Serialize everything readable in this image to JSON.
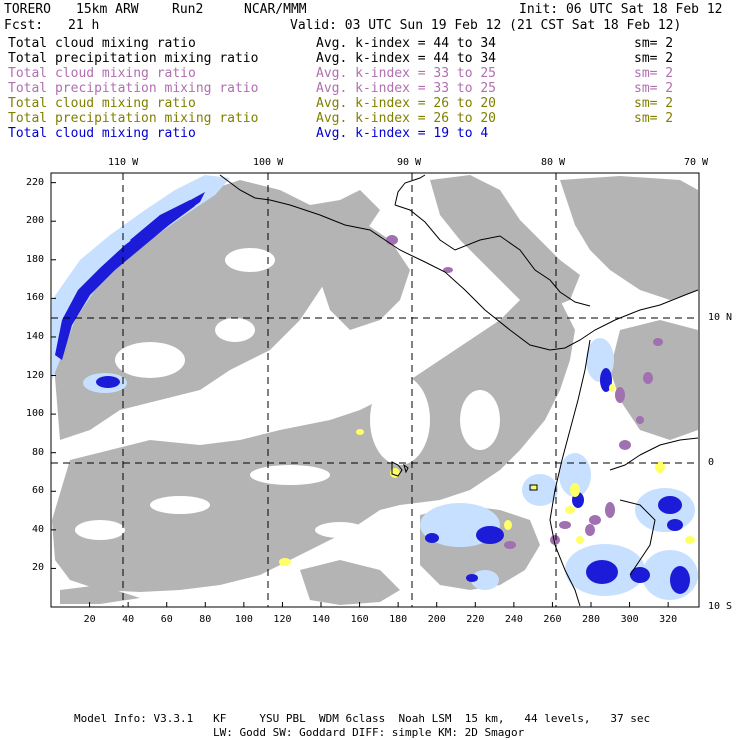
{
  "header": {
    "model": "TORERO",
    "resolution": "15km ARW",
    "run": "Run2",
    "org": "NCAR/MMM",
    "init": "Init: 06 UTC Sat 18 Feb 12",
    "fcst_label": "Fcst:",
    "fcst_value": "21 h",
    "valid": "Valid: 03 UTC Sun 19 Feb 12 (21 CST Sat 18 Feb 12)"
  },
  "legend": [
    {
      "field": "Total cloud mixing ratio",
      "index": "Avg. k-index = 44 to 34",
      "sm": "sm= 2",
      "color": "#000000"
    },
    {
      "field": "Total precipitation mixing ratio",
      "index": "Avg. k-index = 44 to 34",
      "sm": "sm= 2",
      "color": "#000000"
    },
    {
      "field": "Total cloud mixing ratio",
      "index": "Avg. k-index = 33 to 25",
      "sm": "sm= 2",
      "color": "#b070b0"
    },
    {
      "field": "Total precipitation mixing ratio",
      "index": "Avg. k-index = 33 to 25",
      "sm": "sm= 2",
      "color": "#b070b0"
    },
    {
      "field": "Total cloud mixing ratio",
      "index": "Avg. k-index = 26 to 20",
      "sm": "sm= 2",
      "color": "#808000"
    },
    {
      "field": "Total precipitation mixing ratio",
      "index": "Avg. k-index = 26 to 20",
      "sm": "sm= 2",
      "color": "#808000"
    },
    {
      "field": "Total cloud mixing ratio",
      "index": "Avg. k-index = 19 to 4",
      "sm": "",
      "color": "#0000d0"
    }
  ],
  "map": {
    "x_ticks": [
      "20",
      "40",
      "60",
      "80",
      "100",
      "120",
      "140",
      "160",
      "180",
      "200",
      "220",
      "240",
      "260",
      "280",
      "300",
      "320"
    ],
    "y_ticks": [
      "20",
      "40",
      "60",
      "80",
      "100",
      "120",
      "140",
      "160",
      "180",
      "200",
      "220"
    ],
    "lon_labels": [
      "110 W",
      "100 W",
      "90 W",
      "80 W",
      "70 W"
    ],
    "lat_labels": [
      "10 N",
      "0",
      "10 S"
    ],
    "colors": {
      "gray": "#b4b4b4",
      "purple": "#a070b0",
      "yellow": "#ffff66",
      "light_blue": "#c8e0ff",
      "blue": "#1c1cd8"
    }
  },
  "footer": {
    "line1": "Model Info: V3.3.1   KF     YSU PBL  WDM 6class  Noah LSM  15 km,   44 levels,   37 sec",
    "line2": "LW: Godd SW: Goddard DIFF: simple KM: 2D Smagor"
  }
}
